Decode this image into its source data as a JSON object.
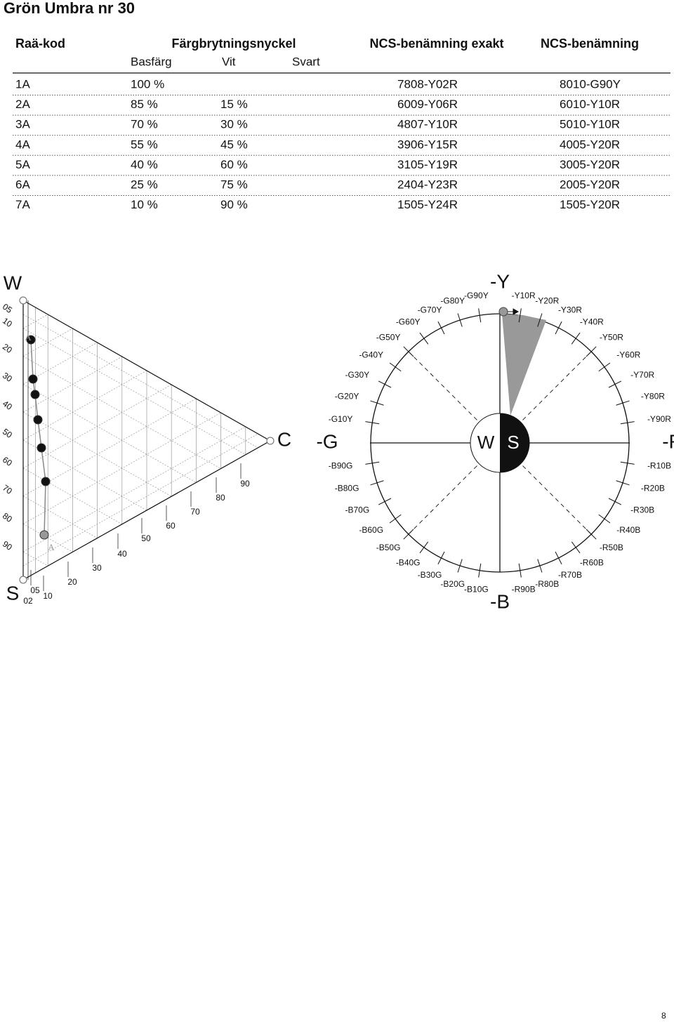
{
  "title": "Grön Umbra nr 30",
  "table": {
    "headers": [
      "Raä-kod",
      "Färgbrytningsnyckel",
      "NCS-benämning exakt",
      "NCS-benämning"
    ],
    "subheaders": [
      "Basfärg",
      "Vit",
      "Svart"
    ],
    "rows": [
      {
        "code": "1A",
        "basfarg": "100 %",
        "exakt": "7808-Y02R",
        "ncs": "8010-G90Y"
      },
      {
        "code": "2A",
        "basfarg": "85 %",
        "vit": "15 %",
        "exakt": "6009-Y06R",
        "ncs": "6010-Y10R"
      },
      {
        "code": "3A",
        "basfarg": "70 %",
        "vit": "30 %",
        "exakt": "4807-Y10R",
        "ncs": "5010-Y10R"
      },
      {
        "code": "4A",
        "basfarg": "55 %",
        "vit": "45 %",
        "exakt": "3906-Y15R",
        "ncs": "4005-Y20R"
      },
      {
        "code": "5A",
        "basfarg": "40 %",
        "vit": "60 %",
        "exakt": "3105-Y19R",
        "ncs": "3005-Y20R"
      },
      {
        "code": "6A",
        "basfarg": "25 %",
        "vit": "75 %",
        "exakt": "2404-Y23R",
        "ncs": "2005-Y20R"
      },
      {
        "code": "7A",
        "basfarg": "10 %",
        "vit": "90 %",
        "exakt": "1505-Y24R",
        "ncs": "1505-Y20R"
      }
    ]
  },
  "triangle": {
    "corners": [
      "W",
      "S",
      "C"
    ],
    "left_scale": [
      "05",
      "10",
      "20",
      "30",
      "40",
      "50",
      "60",
      "70",
      "80",
      "90"
    ],
    "bottom_scale": [
      "02",
      "05",
      "10",
      "20",
      "30",
      "40",
      "50",
      "60",
      "70",
      "80",
      "90"
    ],
    "point_labels": [
      "A",
      "A"
    ]
  },
  "circle": {
    "center": [
      "W",
      "S"
    ],
    "hues": [
      "-Y",
      "-Y10R",
      "-Y20R",
      "-Y30R",
      "-Y40R",
      "-Y50R",
      "-Y60R",
      "-Y70R",
      "-Y80R",
      "-Y90R",
      "-R",
      "-R10B",
      "-R20B",
      "-R30B",
      "-R40B",
      "-R50B",
      "-R60B",
      "-R70B",
      "-R80B",
      "-R90B",
      "-B",
      "-B10G",
      "-B20G",
      "-B30G",
      "-B40G",
      "-B50G",
      "-B60G",
      "-B70G",
      "-B80G",
      "-B90G",
      "-G",
      "-G10Y",
      "-G20Y",
      "-G30Y",
      "-G40Y",
      "-G50Y",
      "-G60Y",
      "-G70Y",
      "-G80Y",
      "-G90Y"
    ]
  },
  "page_number": "8"
}
